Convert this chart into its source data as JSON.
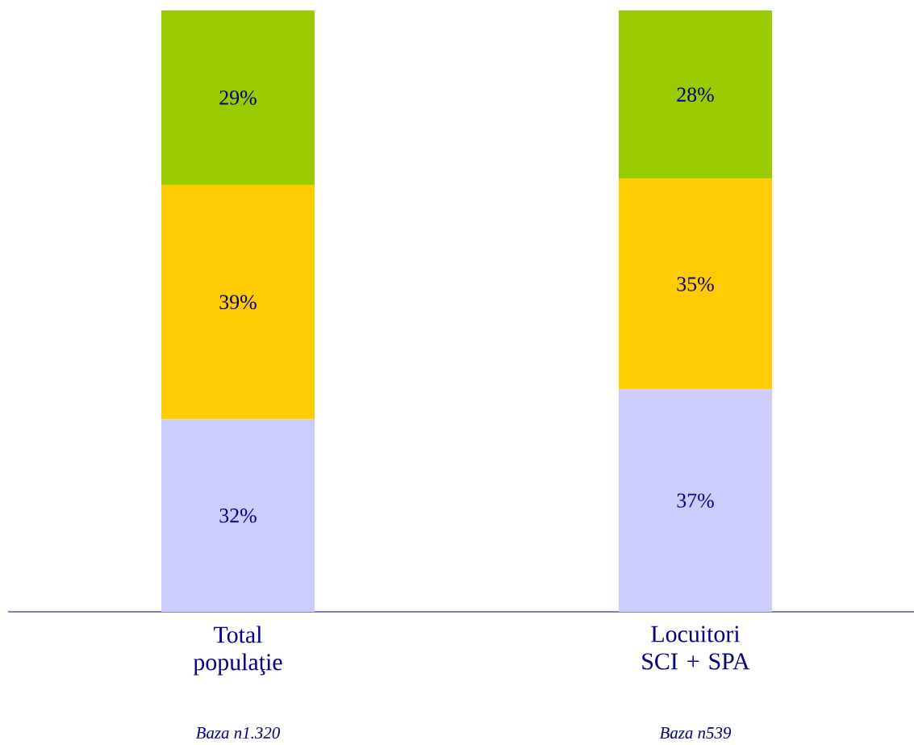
{
  "chart_data": {
    "type": "bar",
    "stacked": true,
    "categories": [
      "Total populaţie",
      "Locuitori SCI + SPA"
    ],
    "ylim": [
      0,
      100
    ],
    "tick_labels": "x",
    "data_labels": true,
    "series": [
      {
        "color": "#ccccff",
        "values": [
          32,
          37
        ],
        "value_labels": [
          "32%",
          "37%"
        ]
      },
      {
        "color": "#ffcc00",
        "values": [
          39,
          35
        ],
        "value_labels": [
          "39%",
          "35%"
        ]
      },
      {
        "color": "#99cc00",
        "values": [
          29,
          28
        ],
        "value_labels": [
          "29%",
          "28%"
        ]
      }
    ],
    "annotations": [
      "Baza n1.320",
      "Baza n539"
    ]
  }
}
